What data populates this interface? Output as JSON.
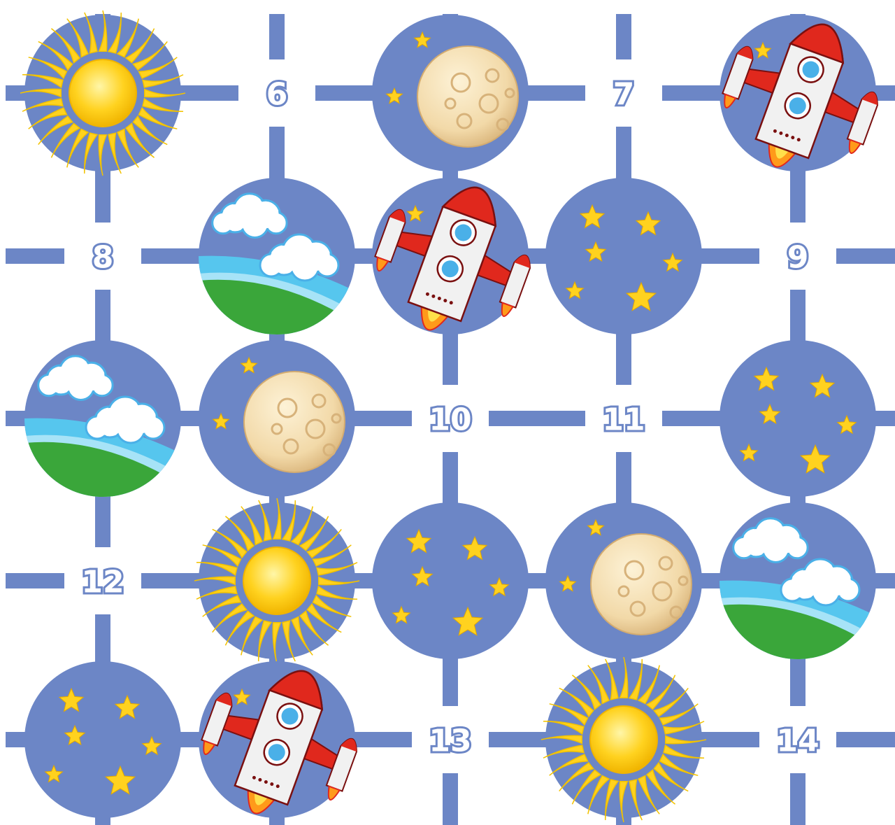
{
  "board": {
    "colors": {
      "track": "#6c86c6",
      "background": "#ffffff",
      "sun": "#ffd21f",
      "moon": "#f5e0b5",
      "star": "#ffd21f",
      "rocket_body": "#f1f1f1",
      "rocket_red": "#e0281d",
      "cloud": "#ffffff",
      "grass": "#3aa63a",
      "sky": "#56c6ee"
    },
    "labels": [
      "6",
      "7",
      "8",
      "9",
      "10",
      "11",
      "12",
      "13",
      "14"
    ],
    "tiles": [
      {
        "type": "sun",
        "icon": "sun-icon"
      },
      {
        "type": "moon",
        "icon": "moon-icon"
      },
      {
        "type": "rocket",
        "icon": "rocket-icon"
      },
      {
        "type": "earth",
        "icon": "earth-clouds-icon"
      },
      {
        "type": "rocket",
        "icon": "rocket-icon"
      },
      {
        "type": "stars",
        "icon": "stars-icon"
      },
      {
        "type": "earth",
        "icon": "earth-clouds-icon"
      },
      {
        "type": "moon",
        "icon": "moon-icon"
      },
      {
        "type": "stars",
        "icon": "stars-icon"
      },
      {
        "type": "sun",
        "icon": "sun-icon"
      },
      {
        "type": "stars",
        "icon": "stars-icon"
      },
      {
        "type": "moon",
        "icon": "moon-icon"
      },
      {
        "type": "earth",
        "icon": "earth-clouds-icon"
      },
      {
        "type": "stars",
        "icon": "stars-icon"
      },
      {
        "type": "rocket",
        "icon": "rocket-icon"
      },
      {
        "type": "sun",
        "icon": "sun-icon"
      }
    ]
  }
}
